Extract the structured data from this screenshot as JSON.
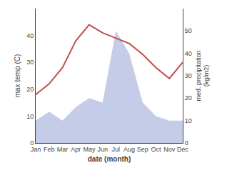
{
  "chart_data": {
    "type": "line",
    "categories": [
      "Jan",
      "Feb",
      "Mar",
      "Apr",
      "May",
      "Jun",
      "Jul",
      "Aug",
      "Sep",
      "Oct",
      "Nov",
      "Dec"
    ],
    "xlabel": "date (month)",
    "ylabel": "max temp (C)",
    "y2label": "med. precipitation\n(kg/m2)",
    "series": [
      {
        "type": "area",
        "color": "#c5cce8",
        "axis": "y2",
        "values": [
          10,
          14,
          10,
          16,
          20,
          18,
          50,
          40,
          18,
          12,
          10,
          10
        ]
      },
      {
        "type": "line",
        "color": "#c0504d",
        "values": [
          18,
          22,
          28,
          38,
          44,
          41,
          39,
          37,
          33,
          28,
          24,
          30
        ]
      }
    ],
    "ylim": [
      0,
      50
    ],
    "yticks": [
      0,
      10,
      20,
      30,
      40
    ],
    "y2lim": [
      0,
      60
    ],
    "y2ticks": [
      0,
      10,
      20,
      30,
      40,
      50
    ],
    "grid": false
  }
}
